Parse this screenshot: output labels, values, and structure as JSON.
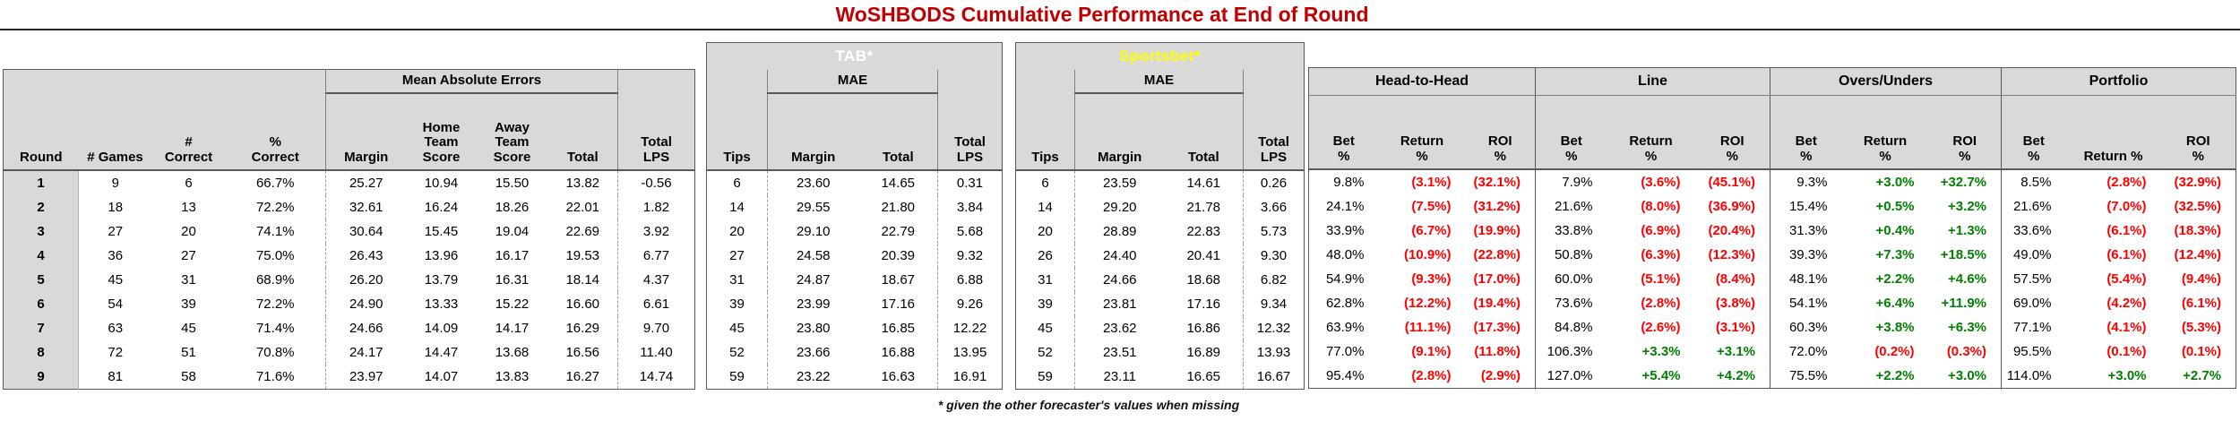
{
  "title": "WoSHBODS Cumulative Performance at End of Round",
  "footnote": "* given the other forecaster's values when missing",
  "colors": {
    "title_red": "#c00000",
    "negative_red": "#ff0000",
    "positive_green": "#008000",
    "tab_green": "#00a550",
    "sportsbet_teal": "#31849b",
    "sportsbet_text_yellow": "#ffff00",
    "header_gray": "#d9d9d9"
  },
  "left": {
    "group_header": "Mean Absolute Errors",
    "headers": {
      "round": "Round",
      "games": "# Games",
      "correct": "#\nCorrect",
      "pct": "%\nCorrect",
      "margin": "Margin",
      "home": "Home\nTeam\nScore",
      "away": "Away\nTeam\nScore",
      "total": "Total",
      "lps": "Total\nLPS"
    },
    "rows": [
      [
        "1",
        "9",
        "6",
        "66.7%",
        "25.27",
        "10.94",
        "15.50",
        "13.82",
        "-0.56"
      ],
      [
        "2",
        "18",
        "13",
        "72.2%",
        "32.61",
        "16.24",
        "18.26",
        "22.01",
        "1.82"
      ],
      [
        "3",
        "27",
        "20",
        "74.1%",
        "30.64",
        "15.45",
        "19.04",
        "22.69",
        "3.92"
      ],
      [
        "4",
        "36",
        "27",
        "75.0%",
        "26.43",
        "13.96",
        "16.17",
        "19.53",
        "6.77"
      ],
      [
        "5",
        "45",
        "31",
        "68.9%",
        "26.20",
        "13.79",
        "16.31",
        "18.14",
        "4.37"
      ],
      [
        "6",
        "54",
        "39",
        "72.2%",
        "24.90",
        "13.33",
        "15.22",
        "16.60",
        "6.61"
      ],
      [
        "7",
        "63",
        "45",
        "71.4%",
        "24.66",
        "14.09",
        "14.17",
        "16.29",
        "9.70"
      ],
      [
        "8",
        "72",
        "51",
        "70.8%",
        "24.17",
        "14.47",
        "13.68",
        "16.56",
        "11.40"
      ],
      [
        "9",
        "81",
        "58",
        "71.6%",
        "23.97",
        "14.07",
        "13.83",
        "16.27",
        "14.74"
      ]
    ]
  },
  "tab": {
    "title": "TAB*",
    "group_header": "MAE",
    "headers": {
      "tips": "Tips",
      "margin": "Margin",
      "total": "Total",
      "lps": "Total\nLPS"
    },
    "rows": [
      [
        "6",
        "23.60",
        "14.65",
        "0.31"
      ],
      [
        "14",
        "29.55",
        "21.80",
        "3.84"
      ],
      [
        "20",
        "29.10",
        "22.79",
        "5.68"
      ],
      [
        "27",
        "24.58",
        "20.39",
        "9.32"
      ],
      [
        "31",
        "24.87",
        "18.67",
        "6.88"
      ],
      [
        "39",
        "23.99",
        "17.16",
        "9.26"
      ],
      [
        "45",
        "23.80",
        "16.85",
        "12.22"
      ],
      [
        "52",
        "23.66",
        "16.88",
        "13.95"
      ],
      [
        "59",
        "23.22",
        "16.63",
        "16.91"
      ]
    ]
  },
  "sportsbet": {
    "title": "Sportsbet*",
    "group_header": "MAE",
    "headers": {
      "tips": "Tips",
      "margin": "Margin",
      "total": "Total",
      "lps": "Total\nLPS"
    },
    "rows": [
      [
        "6",
        "23.59",
        "14.61",
        "0.26"
      ],
      [
        "14",
        "29.20",
        "21.78",
        "3.66"
      ],
      [
        "20",
        "28.89",
        "22.83",
        "5.73"
      ],
      [
        "26",
        "24.40",
        "20.41",
        "9.30"
      ],
      [
        "31",
        "24.66",
        "18.68",
        "6.82"
      ],
      [
        "39",
        "23.81",
        "17.16",
        "9.34"
      ],
      [
        "45",
        "23.62",
        "16.86",
        "12.32"
      ],
      [
        "52",
        "23.51",
        "16.89",
        "13.93"
      ],
      [
        "59",
        "23.11",
        "16.65",
        "16.67"
      ]
    ]
  },
  "betting": {
    "groups": [
      {
        "title": "Head-to-Head",
        "headers": [
          "Bet\n%",
          "Return\n%",
          "ROI\n%"
        ],
        "rows": [
          [
            "9.8%",
            "(3.1%)",
            "(32.1%)"
          ],
          [
            "24.1%",
            "(7.5%)",
            "(31.2%)"
          ],
          [
            "33.9%",
            "(6.7%)",
            "(19.9%)"
          ],
          [
            "48.0%",
            "(10.9%)",
            "(22.8%)"
          ],
          [
            "54.9%",
            "(9.3%)",
            "(17.0%)"
          ],
          [
            "62.8%",
            "(12.2%)",
            "(19.4%)"
          ],
          [
            "63.9%",
            "(11.1%)",
            "(17.3%)"
          ],
          [
            "77.0%",
            "(9.1%)",
            "(11.8%)"
          ],
          [
            "95.4%",
            "(2.8%)",
            "(2.9%)"
          ]
        ]
      },
      {
        "title": "Line",
        "headers": [
          "Bet\n%",
          "Return\n%",
          "ROI\n%"
        ],
        "rows": [
          [
            "7.9%",
            "(3.6%)",
            "(45.1%)"
          ],
          [
            "21.6%",
            "(8.0%)",
            "(36.9%)"
          ],
          [
            "33.8%",
            "(6.9%)",
            "(20.4%)"
          ],
          [
            "50.8%",
            "(6.3%)",
            "(12.3%)"
          ],
          [
            "60.0%",
            "(5.1%)",
            "(8.4%)"
          ],
          [
            "73.6%",
            "(2.8%)",
            "(3.8%)"
          ],
          [
            "84.8%",
            "(2.6%)",
            "(3.1%)"
          ],
          [
            "106.3%",
            "+3.3%",
            "+3.1%"
          ],
          [
            "127.0%",
            "+5.4%",
            "+4.2%"
          ]
        ]
      },
      {
        "title": "Overs/Unders",
        "headers": [
          "Bet\n%",
          "Return\n%",
          "ROI\n%"
        ],
        "rows": [
          [
            "9.3%",
            "+3.0%",
            "+32.7%"
          ],
          [
            "15.4%",
            "+0.5%",
            "+3.2%"
          ],
          [
            "31.3%",
            "+0.4%",
            "+1.3%"
          ],
          [
            "39.3%",
            "+7.3%",
            "+18.5%"
          ],
          [
            "48.1%",
            "+2.2%",
            "+4.6%"
          ],
          [
            "54.1%",
            "+6.4%",
            "+11.9%"
          ],
          [
            "60.3%",
            "+3.8%",
            "+6.3%"
          ],
          [
            "72.0%",
            "(0.2%)",
            "(0.3%)"
          ],
          [
            "75.5%",
            "+2.2%",
            "+3.0%"
          ]
        ]
      },
      {
        "title": "Portfolio",
        "headers": [
          "Bet\n%",
          "Return %",
          "ROI\n%"
        ],
        "rows": [
          [
            "8.5%",
            "(2.8%)",
            "(32.9%)"
          ],
          [
            "21.6%",
            "(7.0%)",
            "(32.5%)"
          ],
          [
            "33.6%",
            "(6.1%)",
            "(18.3%)"
          ],
          [
            "49.0%",
            "(6.1%)",
            "(12.4%)"
          ],
          [
            "57.5%",
            "(5.4%)",
            "(9.4%)"
          ],
          [
            "69.0%",
            "(4.2%)",
            "(6.1%)"
          ],
          [
            "77.1%",
            "(4.1%)",
            "(5.3%)"
          ],
          [
            "95.5%",
            "(0.1%)",
            "(0.1%)"
          ],
          [
            "114.0%",
            "+3.0%",
            "+2.7%"
          ]
        ]
      }
    ]
  }
}
